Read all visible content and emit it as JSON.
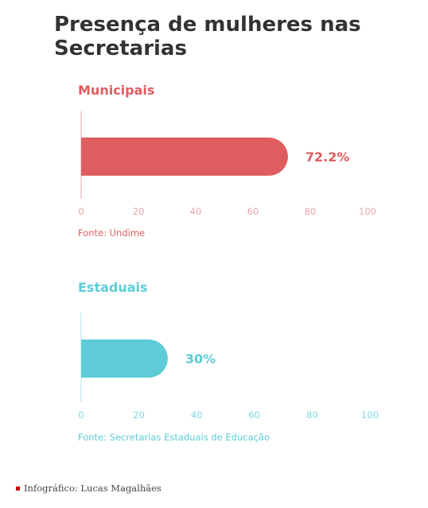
{
  "title": "Presença de mulheres nas Secretarias",
  "credit": "Infográfico: Lucas Magalhães",
  "colors": {
    "municipal": "#e05d5f",
    "estadual": "#5dccd8",
    "title": "#333333",
    "credit_marker": "#cc0000"
  },
  "chart_data": [
    {
      "type": "bar",
      "orientation": "horizontal",
      "title": "Municipais",
      "categories": [
        ""
      ],
      "values": [
        72.2
      ],
      "value_label": "72.2%",
      "xlim": [
        0,
        100
      ],
      "xticks": [
        "0",
        "20",
        "40",
        "60",
        "80",
        "100"
      ],
      "grid": false,
      "source": "Fonte: Undime",
      "color": "#e05d5f"
    },
    {
      "type": "bar",
      "orientation": "horizontal",
      "title": "Estaduais",
      "categories": [
        ""
      ],
      "values": [
        30
      ],
      "value_label": "30%",
      "xlim": [
        0,
        100
      ],
      "xticks": [
        "0",
        "20",
        "40",
        "60",
        "80",
        "100"
      ],
      "grid": false,
      "source": "Fonte: Secretarias Estaduais de Educação",
      "color": "#5dccd8"
    }
  ]
}
